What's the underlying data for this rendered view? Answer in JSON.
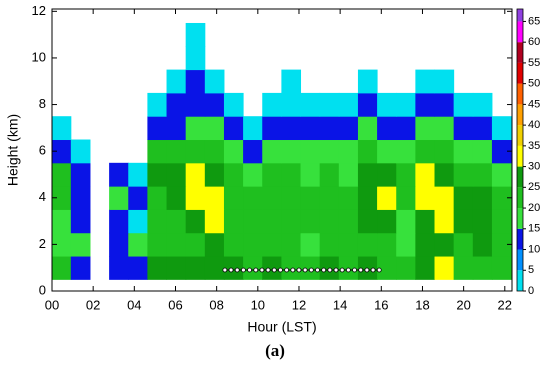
{
  "chart_data": {
    "type": "contour",
    "x_label": "Hour (LST)",
    "y_label": "Height (km)",
    "caption": "(a)",
    "xlim": [
      0,
      22.35
    ],
    "ylim": [
      0,
      12.1
    ],
    "xticks": [
      {
        "value": 0,
        "label": "00"
      },
      {
        "value": 2,
        "label": "02"
      },
      {
        "value": 4,
        "label": "04"
      },
      {
        "value": 6,
        "label": "06"
      },
      {
        "value": 8,
        "label": "08"
      },
      10,
      12,
      14,
      16,
      18,
      20,
      22
    ],
    "yticks": [
      0,
      2,
      4,
      6,
      8,
      10,
      12
    ],
    "x": [
      0.45,
      1.38,
      2.31,
      3.24,
      4.17,
      5.1,
      6.03,
      6.96,
      7.89,
      8.82,
      9.75,
      10.68,
      11.61,
      12.54,
      13.47,
      14.4,
      15.33,
      16.26,
      17.19,
      18.12,
      19.05,
      19.98,
      20.91,
      21.84
    ],
    "y": [
      1,
      2,
      3,
      4,
      5,
      6,
      7,
      8,
      9,
      10,
      11
    ],
    "z": [
      [
        20,
        10,
        null,
        10,
        10,
        25,
        25,
        25,
        25,
        25,
        20,
        25,
        20,
        20,
        25,
        20,
        25,
        20,
        20,
        25,
        30,
        20,
        20,
        20
      ],
      [
        15,
        15,
        null,
        10,
        15,
        20,
        20,
        20,
        25,
        20,
        20,
        20,
        20,
        15,
        20,
        20,
        20,
        20,
        15,
        25,
        25,
        20,
        25,
        20
      ],
      [
        15,
        10,
        null,
        10,
        0,
        20,
        20,
        25,
        30,
        20,
        20,
        20,
        20,
        20,
        20,
        20,
        25,
        25,
        15,
        25,
        30,
        25,
        25,
        20
      ],
      [
        20,
        10,
        null,
        15,
        10,
        20,
        25,
        30,
        30,
        20,
        20,
        20,
        20,
        20,
        20,
        20,
        25,
        30,
        20,
        30,
        30,
        25,
        25,
        20
      ],
      [
        20,
        10,
        null,
        10,
        0,
        25,
        25,
        30,
        25,
        20,
        15,
        20,
        20,
        15,
        20,
        15,
        25,
        25,
        20,
        30,
        25,
        20,
        20,
        15
      ],
      [
        10,
        0,
        null,
        null,
        null,
        20,
        20,
        20,
        20,
        15,
        10,
        15,
        15,
        15,
        15,
        15,
        20,
        15,
        15,
        20,
        20,
        15,
        15,
        10
      ],
      [
        0,
        null,
        null,
        null,
        null,
        10,
        10,
        15,
        15,
        10,
        0,
        10,
        10,
        10,
        10,
        10,
        15,
        10,
        10,
        15,
        15,
        10,
        10,
        0
      ],
      [
        null,
        null,
        null,
        null,
        null,
        0,
        10,
        10,
        10,
        0,
        null,
        0,
        0,
        0,
        0,
        0,
        10,
        0,
        0,
        10,
        10,
        0,
        0,
        null
      ],
      [
        null,
        null,
        null,
        null,
        null,
        null,
        0,
        10,
        0,
        null,
        null,
        null,
        0,
        null,
        null,
        null,
        0,
        null,
        null,
        0,
        0,
        null,
        null,
        null
      ],
      [
        null,
        null,
        null,
        null,
        null,
        null,
        null,
        0,
        null,
        null,
        null,
        null,
        null,
        null,
        null,
        null,
        null,
        null,
        null,
        null,
        null,
        null,
        null,
        null
      ],
      [
        null,
        null,
        null,
        null,
        null,
        null,
        null,
        0,
        null,
        null,
        null,
        null,
        null,
        null,
        null,
        null,
        null,
        null,
        null,
        null,
        null,
        null,
        null,
        null
      ]
    ],
    "zlim": [
      0,
      68
    ],
    "zticks": [
      0,
      5,
      10,
      15,
      20,
      25,
      30,
      35,
      40,
      45,
      50,
      55,
      60,
      65
    ],
    "colors": [
      "#00e0f0",
      "#0090ff",
      "#0a14e6",
      "#37e13c",
      "#1fbf1f",
      "#0f9a0f",
      "#ffff00",
      "#f0d000",
      "#ffa000",
      "#ff6000",
      "#e00000",
      "#b00020",
      "#ff00ff",
      "#9040e0"
    ],
    "marker_x": [
      8.4,
      8.7,
      9.0,
      9.3,
      9.6,
      9.9,
      10.2,
      10.5,
      10.8,
      11.1,
      11.4,
      11.7,
      12.0,
      12.3,
      12.6,
      12.9,
      13.2,
      13.5,
      13.8,
      14.1,
      14.4,
      14.7,
      15.0,
      15.3,
      15.6,
      15.9
    ],
    "marker_y": [
      0.9,
      0.9,
      0.9,
      0.9,
      0.9,
      0.9,
      0.9,
      0.9,
      0.9,
      0.9,
      0.9,
      0.9,
      0.9,
      0.9,
      0.9,
      0.9,
      0.9,
      0.9,
      0.9,
      0.9,
      0.9,
      0.9,
      0.9,
      0.9,
      0.9,
      0.9
    ]
  }
}
